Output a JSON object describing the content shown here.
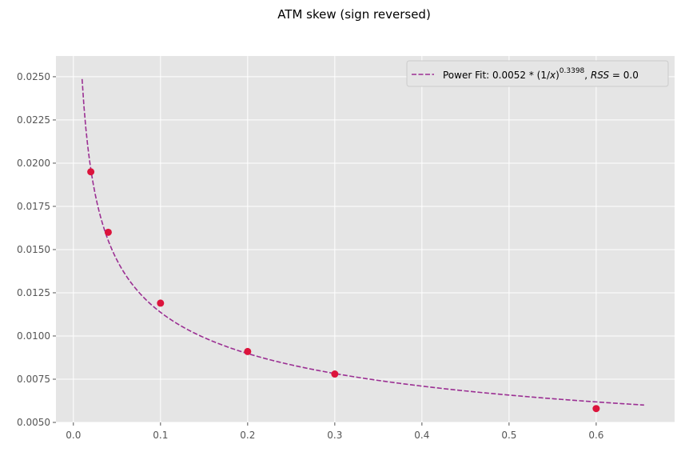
{
  "chart_data": {
    "type": "scatter",
    "title": "ATM skew (sign reversed)",
    "xlabel": "",
    "ylabel": "",
    "xlim": [
      -0.02,
      0.69
    ],
    "ylim": [
      0.005,
      0.0262
    ],
    "x_ticks": [
      0.0,
      0.1,
      0.2,
      0.3,
      0.4,
      0.5,
      0.6
    ],
    "x_tick_labels": [
      "0.0",
      "0.1",
      "0.2",
      "0.3",
      "0.4",
      "0.5",
      "0.6"
    ],
    "y_ticks": [
      0.005,
      0.0075,
      0.01,
      0.0125,
      0.015,
      0.0175,
      0.02,
      0.0225,
      0.025
    ],
    "y_tick_labels": [
      "0.0050",
      "0.0075",
      "0.0100",
      "0.0125",
      "0.0150",
      "0.0175",
      "0.0200",
      "0.0225",
      "0.0250"
    ],
    "grid": true,
    "legend": "top-right",
    "series": [
      {
        "kind": "scatter",
        "color": "#DC143C",
        "points": [
          {
            "x": 0.02,
            "y": 0.0195
          },
          {
            "x": 0.04,
            "y": 0.016
          },
          {
            "x": 0.1,
            "y": 0.0119
          },
          {
            "x": 0.2,
            "y": 0.0091
          },
          {
            "x": 0.3,
            "y": 0.0078
          },
          {
            "x": 0.6,
            "y": 0.0058
          }
        ]
      },
      {
        "kind": "line",
        "dash": "dashed",
        "color": "#9B2F93",
        "legend_label": "Power Fit: 0.0052 * (1/x)^0.3398, RSS = 0.0",
        "function": {
          "a": 0.0052,
          "b": 0.3398
        },
        "x_range": [
          0.01,
          0.655
        ]
      }
    ]
  },
  "legend": {
    "prefix": "Power Fit: 0.0052 * (1/",
    "var_x": "x",
    "close": ")",
    "exponent": "0.3398",
    "comma": ", ",
    "rss": "RSS",
    "eq": " = 0.0"
  }
}
